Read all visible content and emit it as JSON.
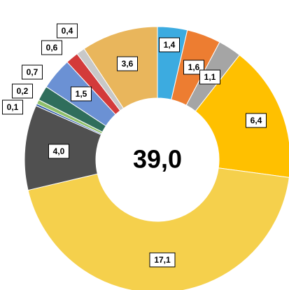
{
  "chart_data": {
    "type": "donut",
    "center_label": "39,0",
    "categories": [
      null,
      null,
      null,
      null,
      null,
      null,
      null,
      null,
      null,
      null,
      null,
      null,
      null
    ],
    "values": [
      1.4,
      1.6,
      1.1,
      6.4,
      17.1,
      4.0,
      0.1,
      0.2,
      0.7,
      1.5,
      0.6,
      0.4,
      3.6
    ],
    "value_labels": [
      "1,4",
      "1,6",
      "1,1",
      "6,4",
      "17,1",
      "4,0",
      "0,1",
      "0,2",
      "0,7",
      "1,5",
      "0,6",
      "0,4",
      "3,6"
    ],
    "colors": [
      "#3cabe0",
      "#ed7d31",
      "#a5a5a5",
      "#ffc000",
      "#f5d04c",
      "#505050",
      "#2f58a8",
      "#8fbf6a",
      "#2f6e5c",
      "#6b91d4",
      "#d33a3a",
      "#c8c8c8",
      "#e9b65c"
    ]
  }
}
